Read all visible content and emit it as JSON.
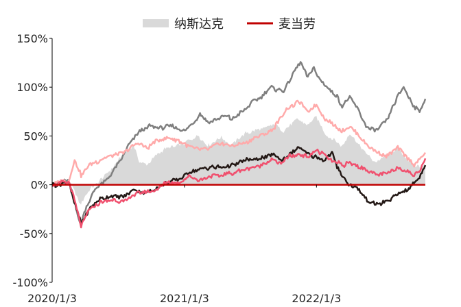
{
  "chart_data": {
    "type": "area+line",
    "title": "",
    "xlabel": "",
    "ylabel": "",
    "ylim": [
      -100,
      150
    ],
    "y_ticks": [
      {
        "value": 150,
        "label": "150%"
      },
      {
        "value": 100,
        "label": "100%"
      },
      {
        "value": 50,
        "label": "50%"
      },
      {
        "value": 0,
        "label": "0%"
      },
      {
        "value": -50,
        "label": "-50%"
      },
      {
        "value": -100,
        "label": "-100%"
      }
    ],
    "x_ticks": [
      {
        "value": "2020-01-03",
        "label": "2020/1/3"
      },
      {
        "value": "2021-01-03",
        "label": "2021/1/3"
      },
      {
        "value": "2022-01-03",
        "label": "2022/1/3"
      }
    ],
    "xlim": [
      "2020-01-03",
      "2022-10-31"
    ],
    "legend": {
      "placement": "top-center",
      "items": [
        {
          "name": "纳斯达克",
          "kind": "area",
          "color": "#d9d9d9"
        },
        {
          "name": "麦当劳",
          "kind": "line",
          "color": "#c00000"
        }
      ]
    },
    "series": [
      {
        "name": "纳斯达克",
        "kind": "area",
        "color": "#d9d9d9",
        "unit": "%",
        "points": [
          [
            "2020-01-03",
            0
          ],
          [
            "2020-02-19",
            5
          ],
          [
            "2020-03-20",
            -20
          ],
          [
            "2020-04-15",
            -5
          ],
          [
            "2020-05-15",
            5
          ],
          [
            "2020-06-15",
            15
          ],
          [
            "2020-07-15",
            30
          ],
          [
            "2020-08-15",
            40
          ],
          [
            "2020-09-03",
            22
          ],
          [
            "2020-09-23",
            20
          ],
          [
            "2020-10-15",
            30
          ],
          [
            "2020-11-15",
            38
          ],
          [
            "2020-12-15",
            40
          ],
          [
            "2021-01-15",
            45
          ],
          [
            "2021-02-12",
            50
          ],
          [
            "2021-03-08",
            40
          ],
          [
            "2021-04-15",
            48
          ],
          [
            "2021-05-12",
            40
          ],
          [
            "2021-06-15",
            52
          ],
          [
            "2021-07-15",
            55
          ],
          [
            "2021-08-15",
            58
          ],
          [
            "2021-09-07",
            62
          ],
          [
            "2021-10-04",
            55
          ],
          [
            "2021-11-10",
            68
          ],
          [
            "2021-12-10",
            62
          ],
          [
            "2022-01-03",
            70
          ],
          [
            "2022-01-27",
            52
          ],
          [
            "2022-03-14",
            40
          ],
          [
            "2022-04-05",
            52
          ],
          [
            "2022-05-20",
            32
          ],
          [
            "2022-06-16",
            23
          ],
          [
            "2022-08-16",
            38
          ],
          [
            "2022-09-30",
            18
          ],
          [
            "2022-10-31",
            20
          ]
        ]
      },
      {
        "name": "",
        "kind": "line",
        "color": "#7f7f7f",
        "unit": "%",
        "points": [
          [
            "2020-01-03",
            0
          ],
          [
            "2020-02-15",
            5
          ],
          [
            "2020-03-01",
            -10
          ],
          [
            "2020-03-20",
            -40
          ],
          [
            "2020-04-10",
            -20
          ],
          [
            "2020-05-01",
            -5
          ],
          [
            "2020-06-01",
            5
          ],
          [
            "2020-07-01",
            20
          ],
          [
            "2020-08-01",
            40
          ],
          [
            "2020-09-01",
            55
          ],
          [
            "2020-10-01",
            60
          ],
          [
            "2020-11-01",
            58
          ],
          [
            "2020-12-01",
            60
          ],
          [
            "2021-01-01",
            55
          ],
          [
            "2021-01-25",
            62
          ],
          [
            "2021-02-15",
            72
          ],
          [
            "2021-03-10",
            63
          ],
          [
            "2021-04-15",
            70
          ],
          [
            "2021-05-15",
            68
          ],
          [
            "2021-06-15",
            75
          ],
          [
            "2021-07-01",
            82
          ],
          [
            "2021-08-01",
            90
          ],
          [
            "2021-09-01",
            100
          ],
          [
            "2021-10-01",
            95
          ],
          [
            "2021-11-01",
            115
          ],
          [
            "2021-11-20",
            125
          ],
          [
            "2021-12-10",
            110
          ],
          [
            "2021-12-27",
            122
          ],
          [
            "2022-01-03",
            112
          ],
          [
            "2022-01-27",
            102
          ],
          [
            "2022-02-15",
            95
          ],
          [
            "2022-03-01",
            90
          ],
          [
            "2022-03-15",
            80
          ],
          [
            "2022-04-05",
            90
          ],
          [
            "2022-05-01",
            75
          ],
          [
            "2022-05-20",
            60
          ],
          [
            "2022-06-16",
            55
          ],
          [
            "2022-07-15",
            65
          ],
          [
            "2022-08-16",
            90
          ],
          [
            "2022-09-01",
            100
          ],
          [
            "2022-09-30",
            80
          ],
          [
            "2022-10-15",
            75
          ],
          [
            "2022-10-31",
            88
          ]
        ]
      },
      {
        "name": "",
        "kind": "line",
        "color": "#ffaaaa",
        "unit": "%",
        "points": [
          [
            "2020-01-03",
            0
          ],
          [
            "2020-02-19",
            5
          ],
          [
            "2020-03-05",
            25
          ],
          [
            "2020-03-23",
            10
          ],
          [
            "2020-04-15",
            20
          ],
          [
            "2020-05-15",
            25
          ],
          [
            "2020-06-15",
            30
          ],
          [
            "2020-07-15",
            32
          ],
          [
            "2020-08-15",
            40
          ],
          [
            "2020-09-03",
            42
          ],
          [
            "2020-09-23",
            38
          ],
          [
            "2020-10-15",
            44
          ],
          [
            "2020-11-15",
            48
          ],
          [
            "2020-12-15",
            45
          ],
          [
            "2021-01-15",
            40
          ],
          [
            "2021-02-15",
            35
          ],
          [
            "2021-03-15",
            38
          ],
          [
            "2021-04-15",
            42
          ],
          [
            "2021-05-15",
            40
          ],
          [
            "2021-06-15",
            42
          ],
          [
            "2021-07-15",
            48
          ],
          [
            "2021-08-15",
            52
          ],
          [
            "2021-09-07",
            58
          ],
          [
            "2021-09-30",
            70
          ],
          [
            "2021-10-15",
            78
          ],
          [
            "2021-11-15",
            85
          ],
          [
            "2021-12-10",
            75
          ],
          [
            "2022-01-03",
            82
          ],
          [
            "2022-01-27",
            68
          ],
          [
            "2022-02-15",
            62
          ],
          [
            "2022-03-14",
            55
          ],
          [
            "2022-04-05",
            60
          ],
          [
            "2022-05-20",
            42
          ],
          [
            "2022-06-16",
            35
          ],
          [
            "2022-07-15",
            30
          ],
          [
            "2022-08-16",
            38
          ],
          [
            "2022-09-30",
            20
          ],
          [
            "2022-10-15",
            25
          ],
          [
            "2022-10-31",
            33
          ]
        ]
      },
      {
        "name": "",
        "kind": "line",
        "color": "#231815",
        "unit": "%",
        "points": [
          [
            "2020-01-03",
            0
          ],
          [
            "2020-02-19",
            2
          ],
          [
            "2020-03-01",
            -15
          ],
          [
            "2020-03-23",
            -40
          ],
          [
            "2020-04-15",
            -25
          ],
          [
            "2020-05-15",
            -15
          ],
          [
            "2020-06-15",
            -12
          ],
          [
            "2020-07-15",
            -12
          ],
          [
            "2020-08-15",
            -5
          ],
          [
            "2020-09-15",
            -8
          ],
          [
            "2020-10-15",
            -5
          ],
          [
            "2020-11-15",
            2
          ],
          [
            "2020-12-15",
            5
          ],
          [
            "2021-01-15",
            12
          ],
          [
            "2021-02-15",
            15
          ],
          [
            "2021-03-15",
            18
          ],
          [
            "2021-04-15",
            18
          ],
          [
            "2021-05-15",
            20
          ],
          [
            "2021-06-15",
            25
          ],
          [
            "2021-07-15",
            25
          ],
          [
            "2021-08-15",
            28
          ],
          [
            "2021-09-01",
            32
          ],
          [
            "2021-09-30",
            25
          ],
          [
            "2021-10-15",
            30
          ],
          [
            "2021-11-15",
            38
          ],
          [
            "2021-12-10",
            32
          ],
          [
            "2022-01-03",
            28
          ],
          [
            "2022-01-27",
            25
          ],
          [
            "2022-02-15",
            32
          ],
          [
            "2022-03-01",
            18
          ],
          [
            "2022-03-15",
            10
          ],
          [
            "2022-04-05",
            0
          ],
          [
            "2022-05-01",
            -5
          ],
          [
            "2022-05-20",
            -15
          ],
          [
            "2022-06-16",
            -20
          ],
          [
            "2022-07-15",
            -18
          ],
          [
            "2022-08-16",
            -10
          ],
          [
            "2022-09-15",
            -5
          ],
          [
            "2022-09-30",
            2
          ],
          [
            "2022-10-15",
            8
          ],
          [
            "2022-10-31",
            20
          ]
        ]
      },
      {
        "name": "",
        "kind": "line",
        "color": "#f0506e",
        "unit": "%",
        "points": [
          [
            "2020-01-03",
            0
          ],
          [
            "2020-02-19",
            3
          ],
          [
            "2020-03-05",
            -15
          ],
          [
            "2020-03-23",
            -42
          ],
          [
            "2020-04-15",
            -25
          ],
          [
            "2020-05-15",
            -18
          ],
          [
            "2020-06-15",
            -15
          ],
          [
            "2020-07-15",
            -18
          ],
          [
            "2020-08-15",
            -10
          ],
          [
            "2020-09-15",
            -8
          ],
          [
            "2020-10-15",
            -5
          ],
          [
            "2020-11-15",
            2
          ],
          [
            "2020-12-15",
            2
          ],
          [
            "2021-01-15",
            8
          ],
          [
            "2021-02-15",
            5
          ],
          [
            "2021-03-15",
            8
          ],
          [
            "2021-04-15",
            10
          ],
          [
            "2021-05-15",
            12
          ],
          [
            "2021-06-15",
            15
          ],
          [
            "2021-07-15",
            18
          ],
          [
            "2021-08-15",
            22
          ],
          [
            "2021-09-01",
            25
          ],
          [
            "2021-09-30",
            22
          ],
          [
            "2021-10-15",
            28
          ],
          [
            "2021-11-15",
            32
          ],
          [
            "2021-12-10",
            28
          ],
          [
            "2022-01-03",
            35
          ],
          [
            "2022-01-27",
            30
          ],
          [
            "2022-02-15",
            25
          ],
          [
            "2022-03-15",
            20
          ],
          [
            "2022-04-05",
            22
          ],
          [
            "2022-05-20",
            15
          ],
          [
            "2022-06-16",
            10
          ],
          [
            "2022-07-15",
            12
          ],
          [
            "2022-08-16",
            18
          ],
          [
            "2022-09-30",
            10
          ],
          [
            "2022-10-15",
            15
          ],
          [
            "2022-10-31",
            27
          ]
        ]
      },
      {
        "name": "麦当劳",
        "kind": "line",
        "color": "#c00000",
        "unit": "%",
        "points": [
          [
            "2020-01-03",
            0
          ],
          [
            "2022-10-31",
            0
          ]
        ]
      }
    ],
    "grid": false
  }
}
